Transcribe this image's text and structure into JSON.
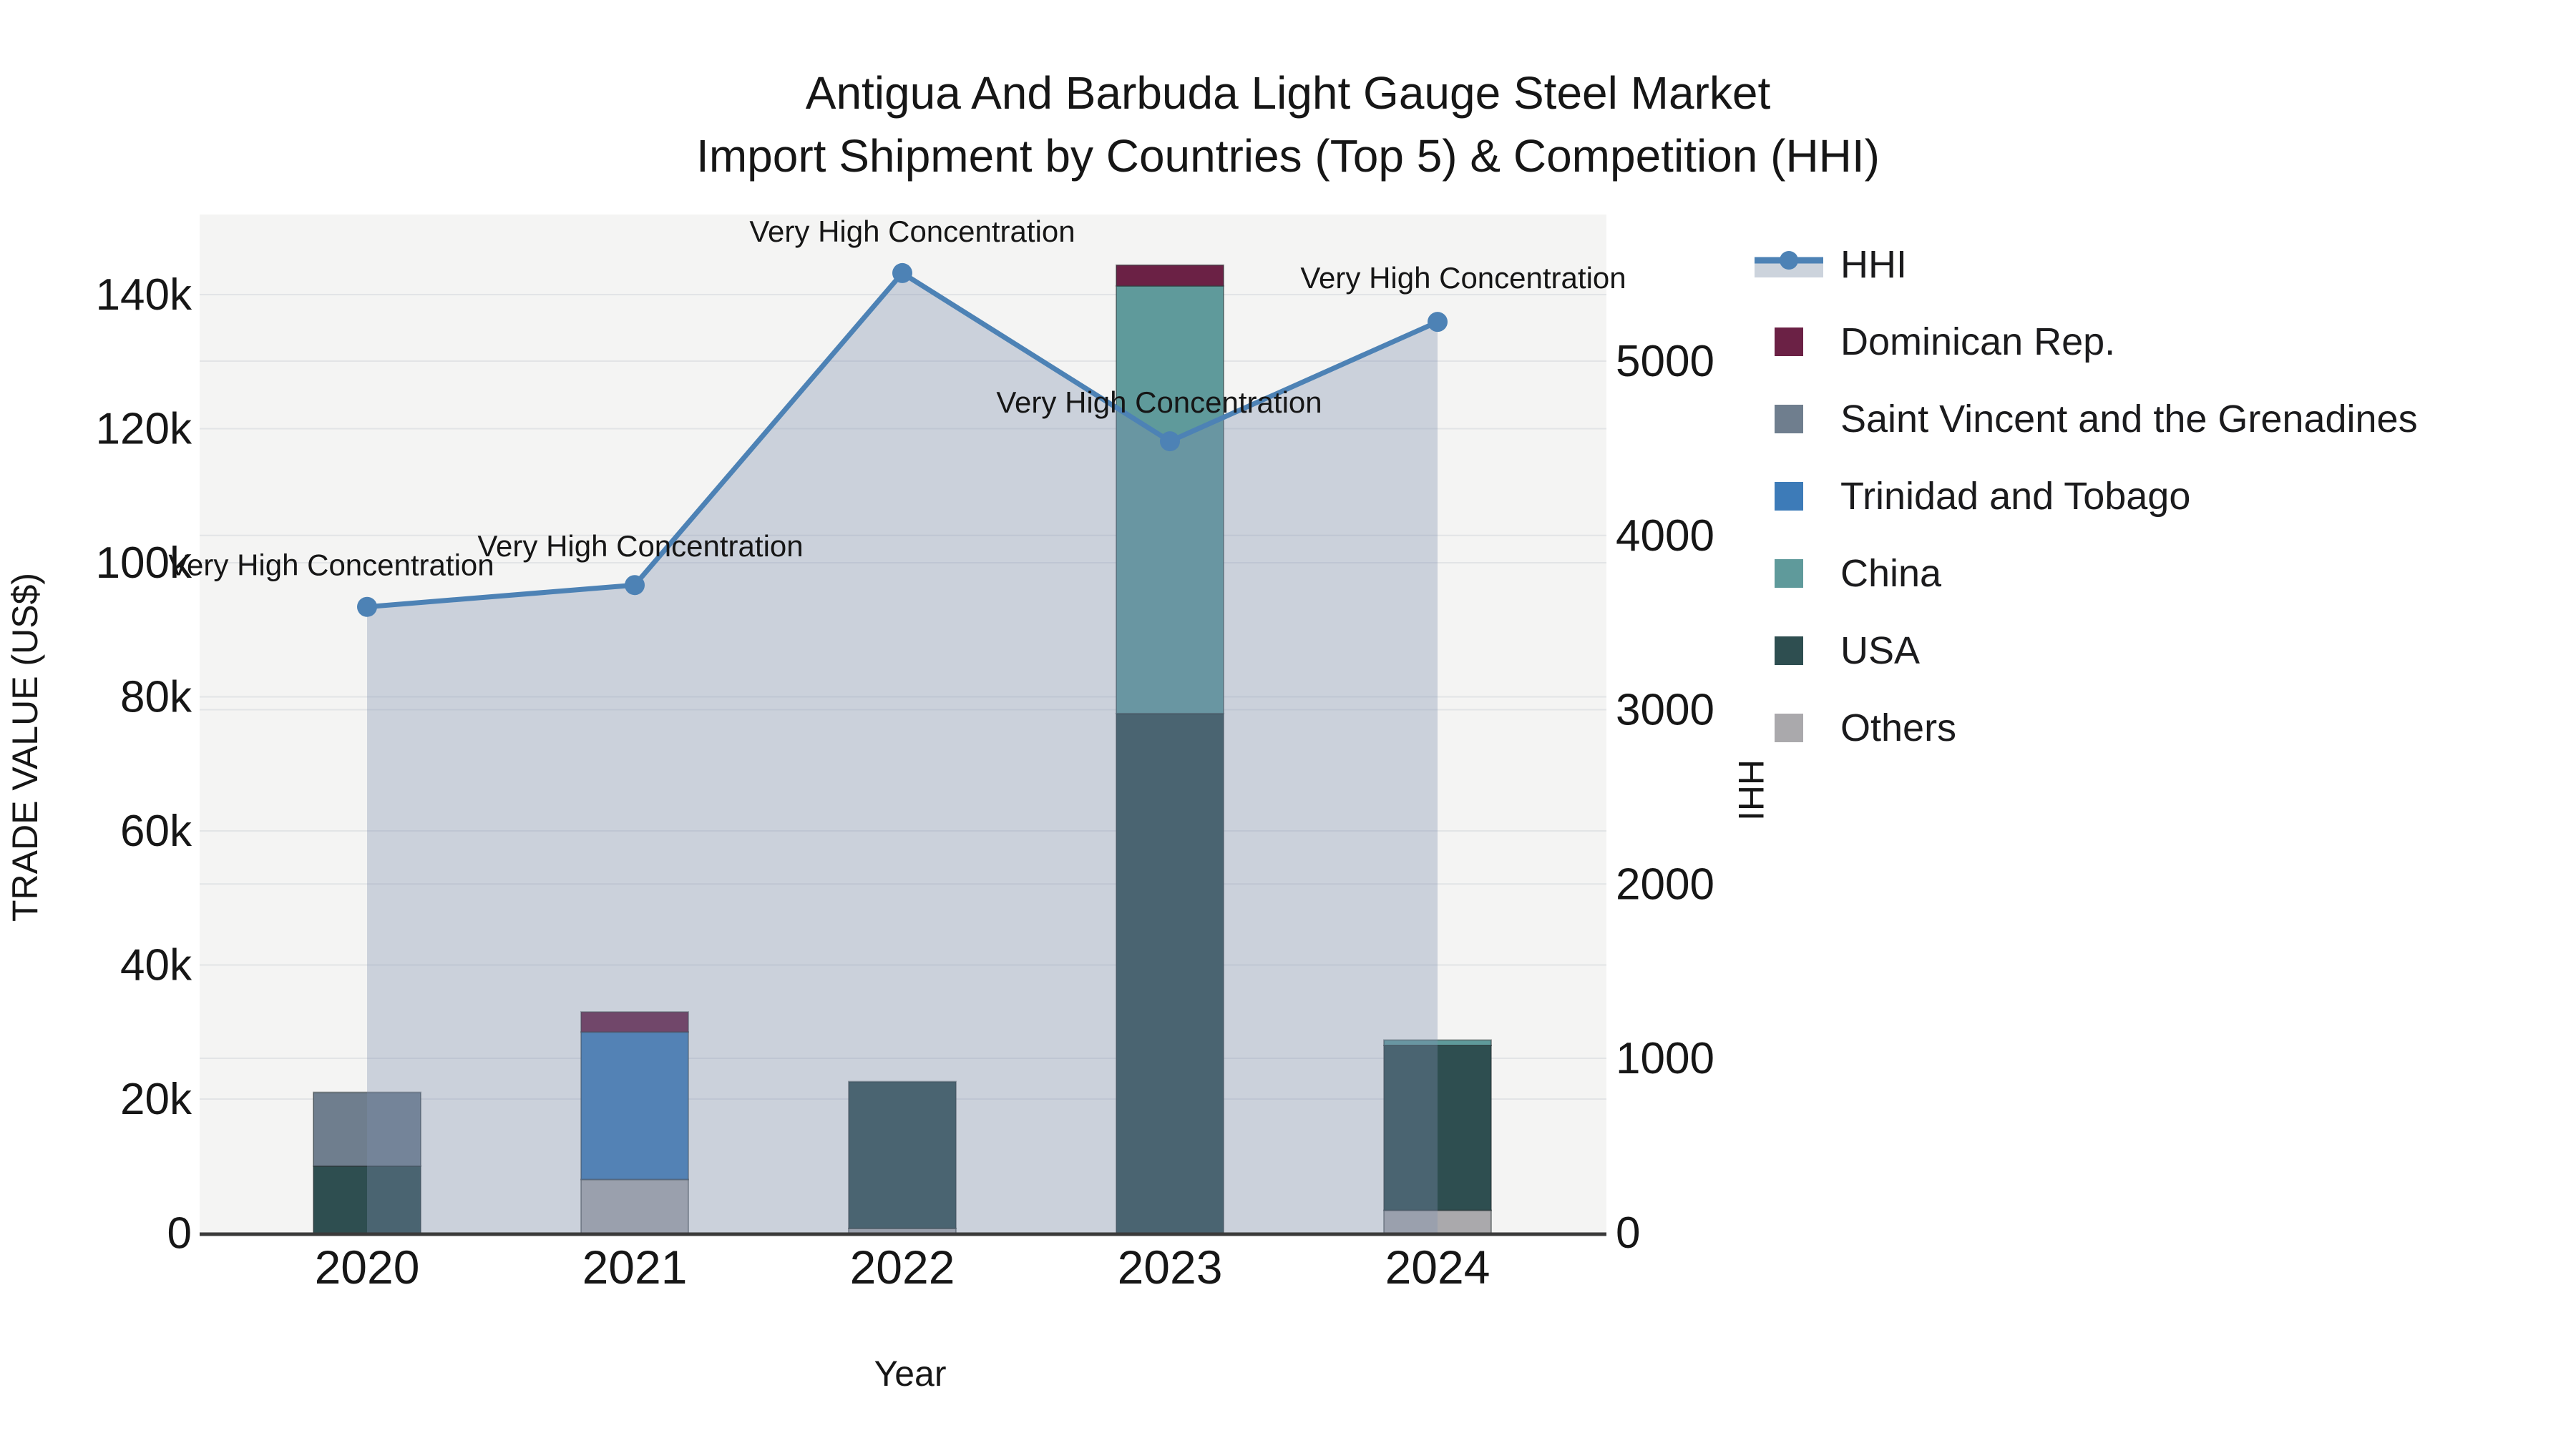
{
  "title": {
    "line1": "Antigua And Barbuda Light Gauge Steel Market",
    "line2": "Import Shipment by Countries (Top 5) & Competition (HHI)"
  },
  "axes": {
    "x": {
      "title": "Year",
      "ticks": [
        "2020",
        "2021",
        "2022",
        "2023",
        "2024"
      ]
    },
    "y_left": {
      "title": "TRADE VALUE (US$)",
      "ticks": [
        "0",
        "20k",
        "40k",
        "60k",
        "80k",
        "100k",
        "120k",
        "140k"
      ],
      "tick_values": [
        0,
        20,
        40,
        60,
        80,
        100,
        120,
        140
      ]
    },
    "y_right": {
      "title": "HHI",
      "ticks": [
        "0",
        "1000",
        "2000",
        "3000",
        "4000",
        "5000"
      ],
      "tick_values": [
        0,
        1000,
        2000,
        3000,
        4000,
        5000
      ]
    }
  },
  "legend": {
    "items": [
      {
        "label": "HHI",
        "type": "line",
        "color": "#4d82b5",
        "band_color": "#ccd3dc"
      },
      {
        "label": "Dominican Rep.",
        "type": "swatch",
        "color": "#6b2145"
      },
      {
        "label": "Saint Vincent and the Grenadines",
        "type": "swatch",
        "color": "#6f7e8e"
      },
      {
        "label": "Trinidad and Tobago",
        "type": "swatch",
        "color": "#3d7bb8"
      },
      {
        "label": "China",
        "type": "swatch",
        "color": "#5f9a9b"
      },
      {
        "label": "USA",
        "type": "swatch",
        "color": "#2e4e50"
      },
      {
        "label": "Others",
        "type": "swatch",
        "color": "#aaa9ac"
      }
    ]
  },
  "colors": {
    "plot_bg": "#f4f4f3",
    "gridline": "#e2e4e6",
    "axis_line": "#3a3a3a",
    "hhi_line": "#4d82b5",
    "hhi_area_fill": "rgba(125,143,174,0.35)",
    "text": "#161616",
    "bar_stroke": "rgba(35,45,47,0.45)"
  },
  "chart_data": {
    "type": "composite",
    "subtypes": [
      "stacked-bar",
      "line"
    ],
    "title": "Antigua And Barbuda Light Gauge Steel Market — Import Shipment by Countries (Top 5) & Competition (HHI)",
    "xlabel": "Year",
    "ylabel_left": "TRADE VALUE (US$)",
    "ylabel_right": "HHI",
    "categories": [
      "2020",
      "2021",
      "2022",
      "2023",
      "2024"
    ],
    "bar_value_unit": "thousand US$",
    "ylim_left_k": [
      0,
      152
    ],
    "ylim_right": [
      0,
      5840
    ],
    "grid": true,
    "legend_position": "right",
    "series": [
      {
        "name": "Dominican Rep.",
        "axis": "left",
        "color": "#6b2145",
        "values": [
          0,
          3,
          0,
          3.1,
          0
        ]
      },
      {
        "name": "Saint Vincent and the Grenadines",
        "axis": "left",
        "color": "#6f7e8e",
        "values": [
          11,
          0,
          0,
          0,
          0
        ]
      },
      {
        "name": "Trinidad and Tobago",
        "axis": "left",
        "color": "#3d7bb8",
        "values": [
          0,
          22,
          0,
          0,
          0
        ]
      },
      {
        "name": "China",
        "axis": "left",
        "color": "#5f9a9b",
        "values": [
          0,
          0,
          0,
          63.8,
          0.8
        ]
      },
      {
        "name": "USA",
        "axis": "left",
        "color": "#2e4e50",
        "values": [
          10,
          0,
          21.9,
          77.5,
          24.6
        ]
      },
      {
        "name": "Others",
        "axis": "left",
        "color": "#aaa9ac",
        "values": [
          0,
          8,
          0.7,
          0,
          3.4
        ]
      }
    ],
    "stack_order_bottom_to_top": [
      "Others",
      "USA",
      "China",
      "Trinidad and Tobago",
      "Saint Vincent and the Grenadines",
      "Dominican Rep."
    ],
    "line_series": {
      "name": "HHI",
      "axis": "right",
      "color": "#4d82b5",
      "values": [
        3590,
        3715,
        5505,
        4540,
        5225
      ]
    },
    "point_annotations": [
      "Very High Concentration",
      "Very High Concentration",
      "Very High Concentration",
      "Very High Concentration",
      "Very High Concentration"
    ]
  }
}
